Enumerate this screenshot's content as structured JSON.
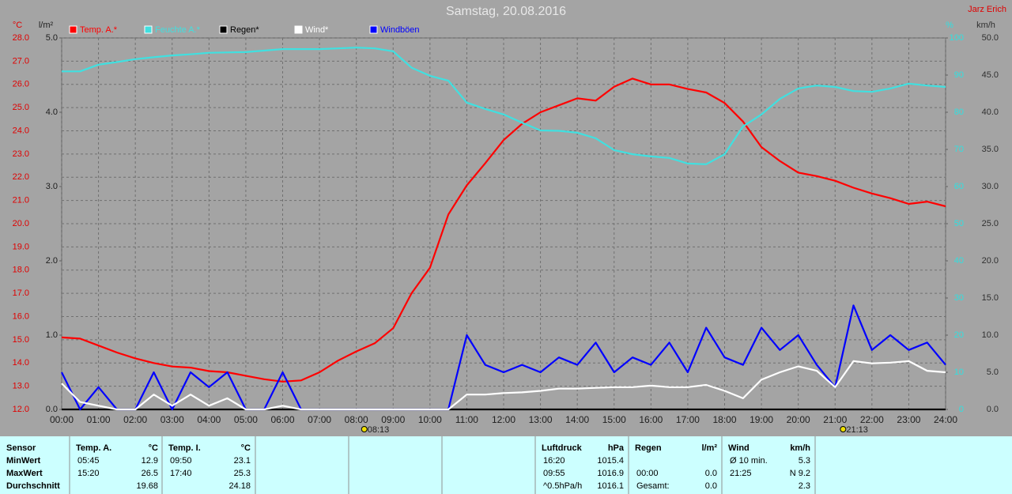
{
  "chart_data": {
    "type": "line",
    "title": "Samstag, 20.08.2016",
    "author": "Jarz Erich",
    "grid": true,
    "xlim": [
      0,
      24
    ],
    "xticks": [
      {
        "value": 0,
        "label": "00:00"
      },
      {
        "value": 1,
        "label": "01:00"
      },
      {
        "value": 2,
        "label": "02:00"
      },
      {
        "value": 3,
        "label": "03:00"
      },
      {
        "value": 4,
        "label": "04:00"
      },
      {
        "value": 5,
        "label": "05:00"
      },
      {
        "value": 6,
        "label": "06:00"
      },
      {
        "value": 7,
        "label": "07:00"
      },
      {
        "value": 8,
        "label": "08:00"
      },
      {
        "value": 9,
        "label": "09:00"
      },
      {
        "value": 10,
        "label": "10:00"
      },
      {
        "value": 11,
        "label": "11:00"
      },
      {
        "value": 12,
        "label": "12:00"
      },
      {
        "value": 13,
        "label": "13:00"
      },
      {
        "value": 14,
        "label": "14:00"
      },
      {
        "value": 15,
        "label": "15:00"
      },
      {
        "value": 16,
        "label": "16:00"
      },
      {
        "value": 17,
        "label": "17:00"
      },
      {
        "value": 18,
        "label": "18:00"
      },
      {
        "value": 19,
        "label": "19:00"
      },
      {
        "value": 20,
        "label": "20:00"
      },
      {
        "value": 21,
        "label": "21:00"
      },
      {
        "value": 22,
        "label": "22:00"
      },
      {
        "value": 23,
        "label": "23:00"
      },
      {
        "value": 24,
        "label": "24:00"
      }
    ],
    "axes": [
      {
        "label": "°C",
        "color": "#e00000",
        "lim": [
          12,
          28
        ],
        "ticks": [
          {
            "value": 12,
            "label": "12.0"
          },
          {
            "value": 13,
            "label": "13.0"
          },
          {
            "value": 14,
            "label": "14.0"
          },
          {
            "value": 15,
            "label": "15.0"
          },
          {
            "value": 16,
            "label": "16.0"
          },
          {
            "value": 17,
            "label": "17.0"
          },
          {
            "value": 18,
            "label": "18.0"
          },
          {
            "value": 19,
            "label": "19.0"
          },
          {
            "value": 20,
            "label": "20.0"
          },
          {
            "value": 21,
            "label": "21.0"
          },
          {
            "value": 22,
            "label": "22.0"
          },
          {
            "value": 23,
            "label": "23.0"
          },
          {
            "value": 24,
            "label": "24.0"
          },
          {
            "value": 25,
            "label": "25.0"
          },
          {
            "value": 26,
            "label": "26.0"
          },
          {
            "value": 27,
            "label": "27.0"
          },
          {
            "value": 28,
            "label": "28.0"
          }
        ]
      },
      {
        "label": "l/m²",
        "color": "#202020",
        "lim": [
          0,
          5
        ],
        "ticks": [
          {
            "value": 0,
            "label": "0.0"
          },
          {
            "value": 1,
            "label": "1.0"
          },
          {
            "value": 2,
            "label": "2.0"
          },
          {
            "value": 3,
            "label": "3.0"
          },
          {
            "value": 4,
            "label": "4.0"
          },
          {
            "value": 5,
            "label": "5.0"
          }
        ]
      },
      {
        "label": "%",
        "color": "#30e0e0",
        "lim": [
          0,
          100
        ],
        "ticks": [
          0,
          10,
          20,
          30,
          40,
          50,
          60,
          70,
          80,
          90,
          100
        ]
      },
      {
        "label": "km/h",
        "color": "#303030",
        "lim": [
          0,
          50
        ],
        "ticks": [
          {
            "value": 0,
            "label": "0.0"
          },
          {
            "value": 5,
            "label": "5.0"
          },
          {
            "value": 10,
            "label": "10.0"
          },
          {
            "value": 15,
            "label": "15.0"
          },
          {
            "value": 20,
            "label": "20.0"
          },
          {
            "value": 25,
            "label": "25.0"
          },
          {
            "value": 30,
            "label": "30.0"
          },
          {
            "value": 35,
            "label": "35.0"
          },
          {
            "value": 40,
            "label": "40.0"
          },
          {
            "value": 45,
            "label": "45.0"
          },
          {
            "value": 50,
            "label": "50.0"
          }
        ]
      }
    ],
    "x": [
      0,
      0.5,
      1,
      1.5,
      2,
      2.5,
      3,
      3.5,
      4,
      4.5,
      5,
      5.5,
      6,
      6.5,
      7,
      7.5,
      8,
      8.5,
      9,
      9.5,
      10,
      10.5,
      11,
      11.5,
      12,
      12.5,
      13,
      13.5,
      14,
      14.5,
      15,
      15.5,
      16,
      16.5,
      17,
      17.5,
      18,
      18.5,
      19,
      19.5,
      20,
      20.5,
      21,
      21.5,
      22,
      22.5,
      23,
      23.5,
      24
    ],
    "series": [
      {
        "name": "Temp. A.*",
        "color": "#ff0000",
        "axis": 0,
        "values": [
          15.1,
          15.05,
          14.75,
          14.45,
          14.2,
          14.0,
          13.85,
          13.8,
          13.65,
          13.6,
          13.45,
          13.3,
          13.2,
          13.25,
          13.6,
          14.1,
          14.5,
          14.85,
          15.5,
          17.0,
          18.1,
          20.4,
          21.65,
          22.6,
          23.6,
          24.3,
          24.8,
          25.1,
          25.4,
          25.3,
          25.9,
          26.25,
          26.0,
          26.0,
          25.8,
          25.65,
          25.2,
          24.4,
          23.3,
          22.7,
          22.2,
          22.05,
          21.85,
          21.55,
          21.3,
          21.1,
          20.85,
          20.95,
          20.75
        ]
      },
      {
        "name": "Feuchte A.*",
        "color": "#40e0e0",
        "axis": 2,
        "values": [
          91,
          91,
          92.8,
          93.5,
          94.3,
          94.8,
          95.3,
          95.6,
          96,
          96.1,
          96.2,
          96.6,
          97,
          97,
          97,
          97.2,
          97.4,
          97.2,
          96.4,
          92,
          89.8,
          88.5,
          82.6,
          80.9,
          79.4,
          77.2,
          75.1,
          75,
          74.5,
          73,
          69.8,
          68.7,
          68.1,
          67.7,
          66.2,
          66,
          68.7,
          76.2,
          79.4,
          83.6,
          86.4,
          87.2,
          86.8,
          85.7,
          85.5,
          86.4,
          87.7,
          87.2,
          86.8
        ]
      },
      {
        "name": "Regen*",
        "color": "#000000",
        "axis": 1,
        "values": [
          0,
          0,
          0,
          0,
          0,
          0,
          0,
          0,
          0,
          0,
          0,
          0,
          0,
          0,
          0,
          0,
          0,
          0,
          0,
          0,
          0,
          0,
          0,
          0,
          0,
          0,
          0,
          0,
          0,
          0,
          0,
          0,
          0,
          0,
          0,
          0,
          0,
          0,
          0,
          0,
          0,
          0,
          0,
          0,
          0,
          0,
          0,
          0,
          0
        ]
      },
      {
        "name": "Wind*",
        "color": "#ffffff",
        "axis": 3,
        "values": [
          3.5,
          1,
          0.5,
          0,
          0,
          2,
          0.5,
          2,
          0.5,
          1.5,
          0,
          0,
          0.5,
          0,
          0,
          0,
          0,
          0,
          0,
          0,
          0,
          0,
          2,
          2,
          2.2,
          2.3,
          2.5,
          2.8,
          2.8,
          2.9,
          3,
          3,
          3.2,
          3,
          3,
          3.3,
          2.5,
          1.5,
          4,
          5,
          5.8,
          5.2,
          3,
          6.5,
          6.2,
          6.3,
          6.5,
          5.2,
          5
        ]
      },
      {
        "name": "Windböen",
        "color": "#0000ff",
        "axis": 3,
        "values": [
          5,
          0,
          3,
          0,
          0,
          5,
          0,
          5,
          3,
          5,
          0,
          0,
          5,
          0,
          0,
          0,
          0,
          0,
          0,
          0,
          0,
          0,
          10,
          6,
          5,
          6,
          5,
          7,
          6,
          9,
          5,
          7,
          6,
          9,
          5,
          11,
          7,
          6,
          11,
          8,
          10,
          6,
          3,
          14,
          8,
          10,
          8,
          9,
          6
        ]
      }
    ],
    "annotations": [
      {
        "label": "08:13",
        "x": 8.2167
      },
      {
        "label": "21:13",
        "x": 21.2167
      }
    ]
  },
  "table": {
    "columns": [
      {
        "header": "Sensor",
        "rows": [
          "MinWert",
          "MaxWert",
          "Durchschnitt"
        ]
      },
      {
        "header": "Temp. A.",
        "unit": "°C",
        "rows": [
          [
            "05:45",
            "12.9"
          ],
          [
            "15:20",
            "26.5"
          ],
          [
            null,
            "19.68"
          ]
        ]
      },
      {
        "header": "Temp. I.",
        "unit": "°C",
        "rows": [
          [
            "09:50",
            "23.1"
          ],
          [
            "17:40",
            "25.3"
          ],
          [
            null,
            "24.18"
          ]
        ]
      },
      {
        "header": "Luftdruck",
        "unit": "hPa",
        "rows": [
          [
            "16:20",
            "1015.4"
          ],
          [
            "09:55",
            "1016.9"
          ],
          [
            "^0.5hPa/h",
            "1016.1"
          ]
        ]
      },
      {
        "header": "Regen",
        "unit": "l/m²",
        "rows": [
          [
            null,
            null
          ],
          [
            "00:00",
            "0.0"
          ],
          [
            "Gesamt:",
            "0.0"
          ]
        ]
      },
      {
        "header": "Wind",
        "unit": "km/h",
        "rows": [
          [
            "Ø 10 min.",
            "5.3"
          ],
          [
            "21:25",
            "N 9.2"
          ],
          [
            null,
            "2.3"
          ]
        ]
      }
    ]
  }
}
